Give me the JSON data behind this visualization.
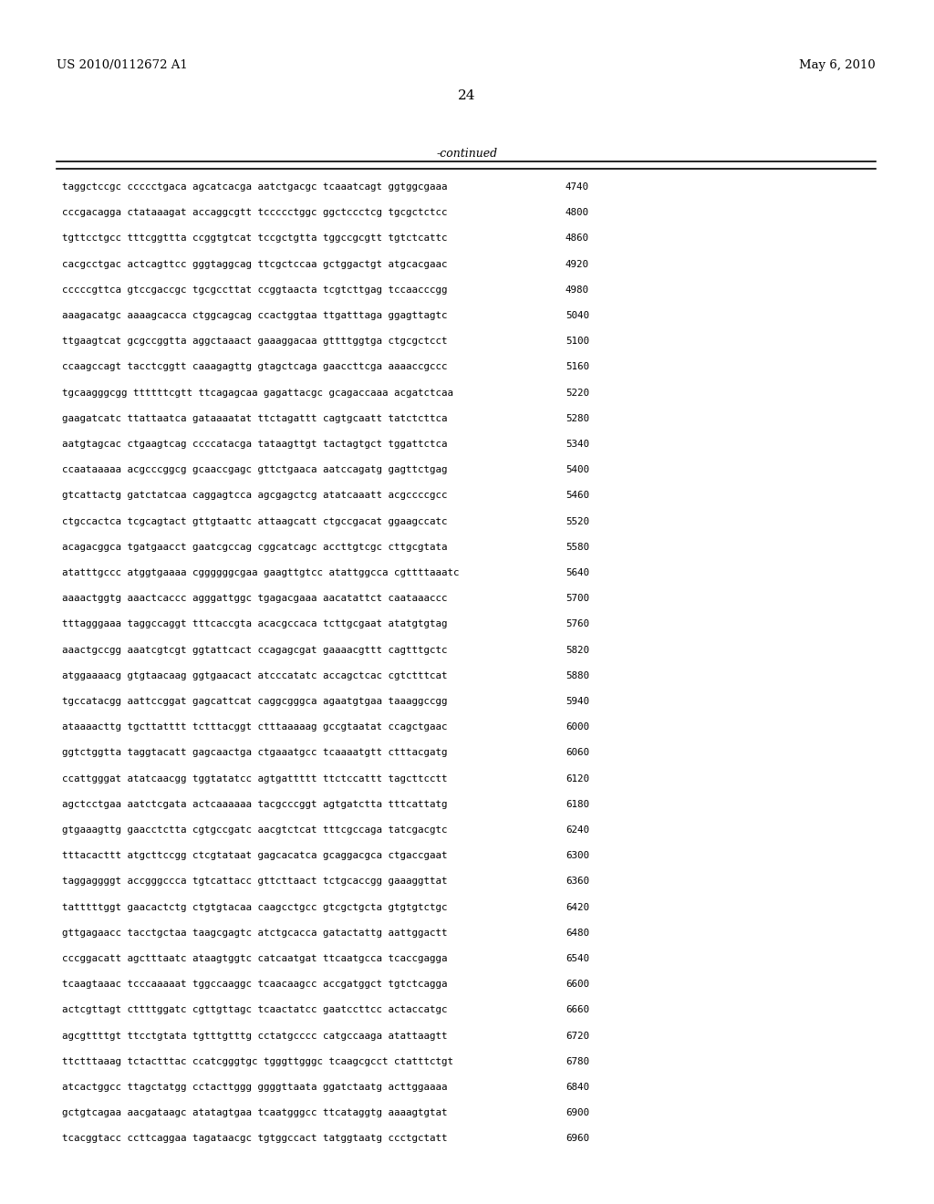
{
  "header_left": "US 2010/0112672 A1",
  "header_right": "May 6, 2010",
  "page_number": "24",
  "continued_label": "-continued",
  "bg_color": "#ffffff",
  "text_color": "#000000",
  "header_fontsize": 9.5,
  "page_num_fontsize": 11,
  "continued_fontsize": 9,
  "seq_fontsize": 7.8,
  "sequences": [
    [
      "taggctccgc ccccctgaca agcatcacga aatctgacgc tcaaatcagt ggtggcgaaa",
      "4740"
    ],
    [
      "cccgacagga ctataaagat accaggcgtt tccccctggc ggctccctcg tgcgctctcc",
      "4800"
    ],
    [
      "tgttcctgcc tttcggttta ccggtgtcat tccgctgtta tggccgcgtt tgtctcattc",
      "4860"
    ],
    [
      "cacgcctgac actcagttcc gggtaggcag ttcgctccaa gctggactgt atgcacgaac",
      "4920"
    ],
    [
      "cccccgttca gtccgaccgc tgcgccttat ccggtaacta tcgtcttgag tccaacccgg",
      "4980"
    ],
    [
      "aaagacatgc aaaagcacca ctggcagcag ccactggtaa ttgatttaga ggagttagtc",
      "5040"
    ],
    [
      "ttgaagtcat gcgccggtta aggctaaact gaaaggacaa gttttggtga ctgcgctcct",
      "5100"
    ],
    [
      "ccaagccagt tacctcggtt caaagagttg gtagctcaga gaaccttcga aaaaccgccc",
      "5160"
    ],
    [
      "tgcaagggcgg ttttttcgtt ttcagagcaa gagattacgc gcagaccaaa acgatctcaa",
      "5220"
    ],
    [
      "gaagatcatc ttattaatca gataaaatat ttctagattt cagtgcaatt tatctcttca",
      "5280"
    ],
    [
      "aatgtagcac ctgaagtcag ccccatacga tataagttgt tactagtgct tggattctca",
      "5340"
    ],
    [
      "ccaataaaaa acgcccggcg gcaaccgagc gttctgaaca aatccagatg gagttctgag",
      "5400"
    ],
    [
      "gtcattactg gatctatcaa caggagtcca agcgagctcg atatcaaatt acgccccgcc",
      "5460"
    ],
    [
      "ctgccactca tcgcagtact gttgtaattc attaagcatt ctgccgacat ggaagccatc",
      "5520"
    ],
    [
      "acagacggca tgatgaacct gaatcgccag cggcatcagc accttgtcgc cttgcgtata",
      "5580"
    ],
    [
      "atatttgccc atggtgaaaa cggggggcgaa gaagttgtcc atattggcca cgttttaaatc",
      "5640"
    ],
    [
      "aaaactggtg aaactcaccc agggattggc tgagacgaaa aacatattct caataaaccc",
      "5700"
    ],
    [
      "tttagggaaa taggccaggt tttcaccgta acacgccaca tcttgcgaat atatgtgtag",
      "5760"
    ],
    [
      "aaactgccgg aaatcgtcgt ggtattcact ccagagcgat gaaaacgttt cagtttgctc",
      "5820"
    ],
    [
      "atggaaaacg gtgtaacaag ggtgaacact atcccatatc accagctcac cgtctttcat",
      "5880"
    ],
    [
      "tgccatacgg aattccggat gagcattcat caggcgggca agaatgtgaa taaaggccgg",
      "5940"
    ],
    [
      "ataaaacttg tgcttatttt tctttacggt ctttaaaaag gccgtaatat ccagctgaac",
      "6000"
    ],
    [
      "ggtctggtta taggtacatt gagcaactga ctgaaatgcc tcaaaatgtt ctttacgatg",
      "6060"
    ],
    [
      "ccattgggat atatcaacgg tggtatatcc agtgattttt ttctccattt tagcttcctt",
      "6120"
    ],
    [
      "agctcctgaa aatctcgata actcaaaaaa tacgcccggt agtgatctta tttcattatg",
      "6180"
    ],
    [
      "gtgaaagttg gaacctctta cgtgccgatc aacgtctcat tttcgccaga tatcgacgtc",
      "6240"
    ],
    [
      "tttacacttt atgcttccgg ctcgtataat gagcacatca gcaggacgca ctgaccgaat",
      "6300"
    ],
    [
      "taggaggggt accgggccca tgtcattacc gttcttaact tctgcaccgg gaaaggttat",
      "6360"
    ],
    [
      "tatttttggt gaacactctg ctgtgtacaa caagcctgcc gtcgctgcta gtgtgtctgc",
      "6420"
    ],
    [
      "gttgagaacc tacctgctaa taagcgagtc atctgcacca gatactattg aattggactt",
      "6480"
    ],
    [
      "cccggacatt agctttaatc ataagtggtc catcaatgat ttcaatgcca tcaccgagga",
      "6540"
    ],
    [
      "tcaagtaaac tcccaaaaat tggccaaggc tcaacaagcc accgatggct tgtctcagga",
      "6600"
    ],
    [
      "actcgttagt cttttggatc cgttgttagc tcaactatcc gaatccttcc actaccatgc",
      "6660"
    ],
    [
      "agcgttttgt ttcctgtata tgtttgtttg cctatgcccc catgccaaga atattaagtt",
      "6720"
    ],
    [
      "ttctttaaag tctactttac ccatcgggtgc tgggttgggc tcaagcgcct ctatttctgt",
      "6780"
    ],
    [
      "atcactggcc ttagctatgg cctacttggg ggggttaata ggatctaatg acttggaaaa",
      "6840"
    ],
    [
      "gctgtcagaa aacgataagc atatagtgaa tcaatgggcc ttcataggtg aaaagtgtat",
      "6900"
    ],
    [
      "tcacggtacc ccttcaggaa tagataacgc tgtggccact tatggtaatg ccctgctatt",
      "6960"
    ]
  ]
}
